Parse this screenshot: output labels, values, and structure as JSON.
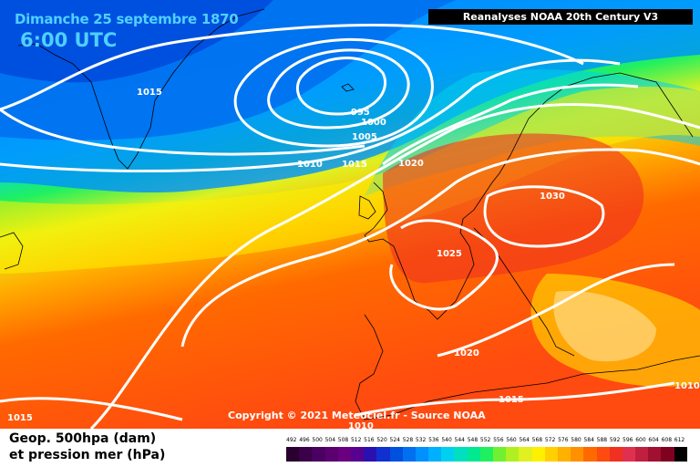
{
  "header": {
    "date_label": "Dimanche 25 septembre 1870",
    "time_label": "6:00 UTC",
    "source_label": "Reanalyses NOAA 20th Century V3"
  },
  "footer": {
    "copyright": "Copyright © 2021 Meteociel.fr - Source NOAA",
    "legend_line1": "Geop. 500hpa (dam)",
    "legend_line2": "et pression mer (hPa)"
  },
  "isobars": [
    {
      "value": "1015",
      "label": "1015"
    },
    {
      "value": "995",
      "label": "995"
    },
    {
      "value": "1000",
      "label": "1000"
    },
    {
      "value": "1005",
      "label": "1005"
    },
    {
      "value": "1010",
      "label": "1010"
    },
    {
      "value": "1015",
      "label": "1015"
    },
    {
      "value": "1020",
      "label": "1020"
    },
    {
      "value": "1030",
      "label": "1030"
    },
    {
      "value": "1025",
      "label": "1025"
    },
    {
      "value": "1020",
      "label": "1020"
    },
    {
      "value": "1015",
      "label": "1015"
    },
    {
      "value": "1010",
      "label": "1010"
    },
    {
      "value": "1015",
      "label": "1015"
    },
    {
      "value": "1010",
      "label": "1010"
    }
  ],
  "scale": {
    "ticks": [
      "492",
      "496",
      "500",
      "504",
      "508",
      "512",
      "516",
      "520",
      "524",
      "528",
      "532",
      "536",
      "540",
      "544",
      "548",
      "552",
      "556",
      "560",
      "564",
      "568",
      "572",
      "576",
      "580",
      "584",
      "588",
      "592",
      "596",
      "600",
      "604",
      "608",
      "612"
    ],
    "colors": [
      "#2a0030",
      "#3a0048",
      "#4a0060",
      "#5a0070",
      "#6a0080",
      "#580090",
      "#2a10b0",
      "#1030d0",
      "#0050e0",
      "#0070f0",
      "#0090ff",
      "#00b0ff",
      "#00d0f0",
      "#00e0c0",
      "#00e890",
      "#20f060",
      "#70f030",
      "#b0f020",
      "#e0f020",
      "#fff000",
      "#ffd000",
      "#ffb000",
      "#ff9000",
      "#ff6a00",
      "#ff4a10",
      "#f03020",
      "#e03050",
      "#c02040",
      "#a01030",
      "#800020",
      "#000000"
    ]
  }
}
